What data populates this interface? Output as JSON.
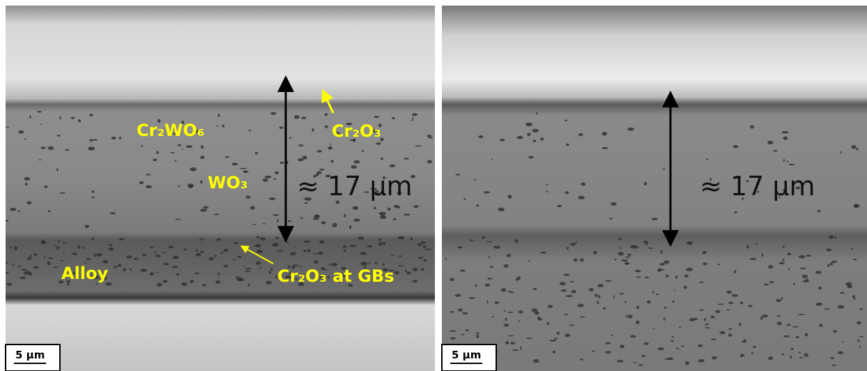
{
  "left_panel": {
    "labels": {
      "cr2wo6": "Cr₂WO₆",
      "cr2o3": "Cr₂O₃",
      "wo3": "WO₃",
      "alloy": "Alloy",
      "cr2o3_gbs": "Cr₂O₃ at GBs"
    },
    "thickness": "≈ 17 µm",
    "scale_bar": "5 µm"
  },
  "right_panel": {
    "thickness": "≈ 17 µm",
    "scale_bar": "5 µm"
  }
}
